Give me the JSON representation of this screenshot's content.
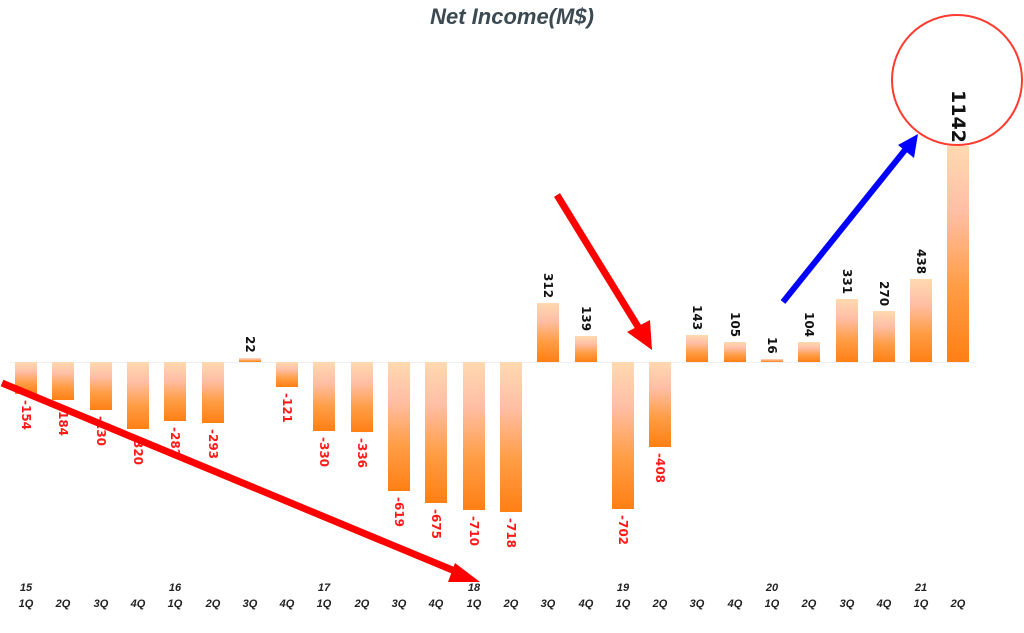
{
  "chart_data": {
    "type": "bar",
    "title": "Net Income(M$)",
    "xlabel": "",
    "ylabel": "",
    "grid": false,
    "legend": null,
    "categories": [
      "15 1Q",
      "15 2Q",
      "15 3Q",
      "15 4Q",
      "16 1Q",
      "16 2Q",
      "16 3Q",
      "16 4Q",
      "17 1Q",
      "17 2Q",
      "17 3Q",
      "17 4Q",
      "18 1Q",
      "18 2Q",
      "18 3Q",
      "18 4Q",
      "19 1Q",
      "19 2Q",
      "19 3Q",
      "19 4Q",
      "20 1Q",
      "20 2Q",
      "20 3Q",
      "20 4Q",
      "21 1Q",
      "21 2Q"
    ],
    "values": [
      -154,
      -184,
      -230,
      -320,
      -282,
      -293,
      22,
      -121,
      -330,
      -336,
      -619,
      -675,
      -710,
      -718,
      312,
      139,
      -702,
      -408,
      143,
      105,
      16,
      104,
      331,
      270,
      438,
      1142
    ],
    "value_labels": [
      "-154",
      "-184",
      "-230",
      "-320",
      "-282",
      "-293",
      "22",
      "-121",
      "-330",
      "-336",
      "-619",
      "-675",
      "-710",
      "-718",
      "312",
      "139",
      "-702",
      "-408",
      "143",
      "105",
      "16",
      "104",
      "331",
      "270",
      "438",
      "1142"
    ],
    "quarter_labels": [
      "1Q",
      "2Q",
      "3Q",
      "4Q",
      "1Q",
      "2Q",
      "3Q",
      "4Q",
      "1Q",
      "2Q",
      "3Q",
      "4Q",
      "1Q",
      "2Q",
      "3Q",
      "4Q",
      "1Q",
      "2Q",
      "3Q",
      "4Q",
      "1Q",
      "2Q",
      "3Q",
      "4Q",
      "1Q",
      "2Q"
    ],
    "year_labels": [
      {
        "index": 0,
        "label": "15"
      },
      {
        "index": 4,
        "label": "16"
      },
      {
        "index": 8,
        "label": "17"
      },
      {
        "index": 12,
        "label": "18"
      },
      {
        "index": 16,
        "label": "19"
      },
      {
        "index": 20,
        "label": "20"
      },
      {
        "index": 24,
        "label": "21"
      }
    ],
    "annotations": [
      {
        "type": "arrow",
        "color": "#ff0000",
        "from_index": 0,
        "to_index": 12,
        "meaning": "declining trend"
      },
      {
        "type": "arrow",
        "color": "#ff0000",
        "to_index": 17,
        "meaning": "drop"
      },
      {
        "type": "arrow",
        "color": "#0000ff",
        "from_index": 20,
        "to_index": 25,
        "meaning": "rising trend"
      },
      {
        "type": "circle",
        "color": "#ff3b30",
        "target_index": 25,
        "label": "1142"
      }
    ],
    "colors": {
      "bar_top": "#ffd9b0",
      "bar_bottom": "#ff7f14",
      "positive_label": "#111111",
      "negative_label": "#ff1a1a",
      "title": "#3b4a52"
    }
  }
}
